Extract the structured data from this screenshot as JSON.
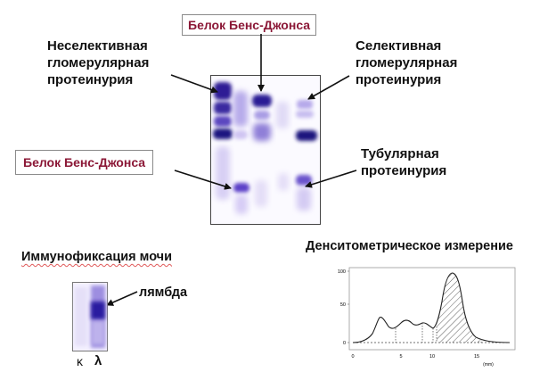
{
  "labels": {
    "bence_jones_top": "Белок Бенс-Джонса",
    "bence_jones_left": "Белок Бенс-Джонса",
    "nonselective": [
      "Неселективная",
      "гломерулярная",
      "протеинурия"
    ],
    "selective": [
      "Селективная",
      "гломерулярная",
      "протеинурия"
    ],
    "tubular": [
      "Тубулярная",
      "протеинурия"
    ]
  },
  "immunofixation": {
    "title": "Иммунофиксация мочи",
    "lambda_label": "лямбда",
    "lane_labels": [
      "κ",
      "λ"
    ]
  },
  "densitometry": {
    "title": "Денситометрическое измерение",
    "unit": "(mm)",
    "y_ticks": [
      "100",
      "50",
      "0"
    ],
    "x_ticks": [
      "0",
      "5",
      "10",
      "15"
    ]
  },
  "colors": {
    "box_text": "#8b1736",
    "band_strong": "#2a1a8a",
    "band_medium": "#7b5fd0",
    "band_light": "#cfc6f0"
  },
  "icons": [
    "arrow-icon"
  ]
}
